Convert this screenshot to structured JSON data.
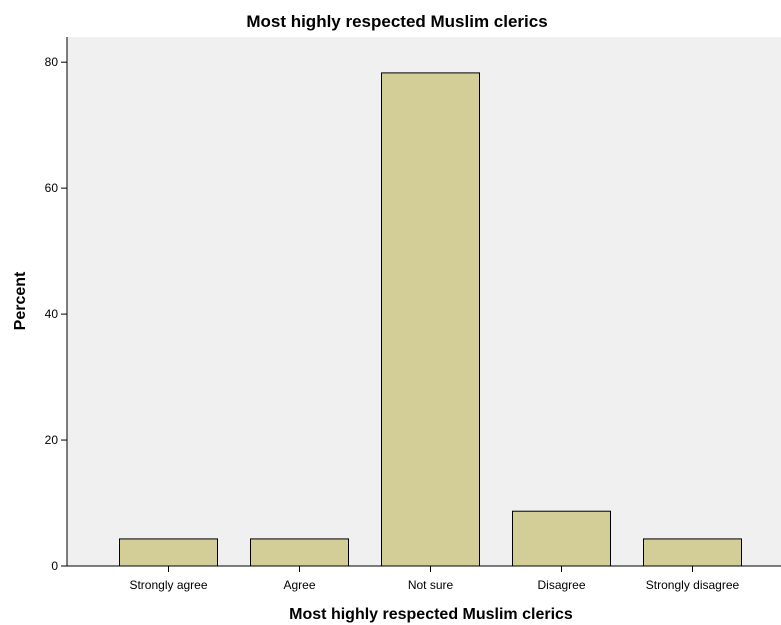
{
  "chart_data": {
    "type": "bar",
    "title": "Most highly respected Muslim clerics",
    "xlabel": "Most highly respected Muslim clerics",
    "ylabel": "Percent",
    "categories": [
      "Strongly agree",
      "Agree",
      "Not sure",
      "Disagree",
      "Strongly disagree"
    ],
    "values": [
      4.3,
      4.3,
      78.3,
      8.7,
      4.3
    ],
    "ylim": [
      0,
      84
    ],
    "yticks": [
      0,
      20,
      40,
      60,
      80
    ],
    "grid": false,
    "legend": "none",
    "colors": {
      "plot_background": "#f0f0f0",
      "bar_fill": "#d3ce97",
      "bar_stroke": "#000000",
      "axis": "#000000"
    }
  }
}
